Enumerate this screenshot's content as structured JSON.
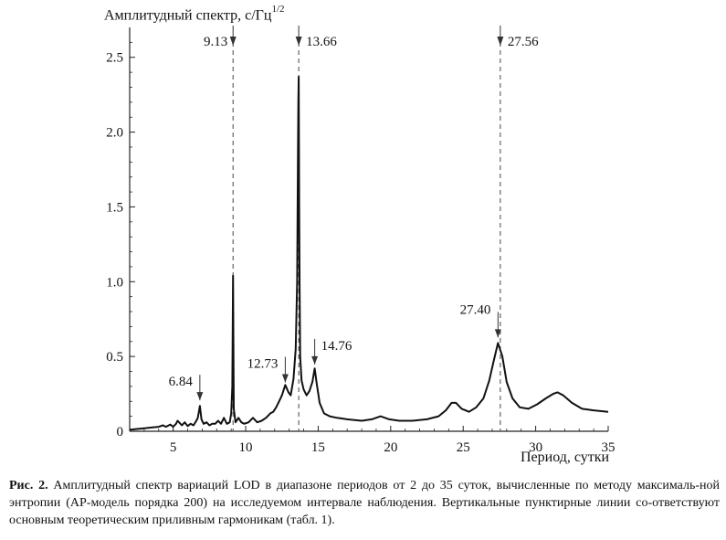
{
  "chart_data": {
    "type": "line",
    "ylabel_main": "Амплитудный спектр, с/Гц",
    "ylabel_sup": "1/2",
    "xlabel": "Период, сутки",
    "xlim": [
      2,
      35
    ],
    "ylim": [
      0,
      2.7
    ],
    "x_ticks": [
      5,
      10,
      15,
      20,
      25,
      30,
      35
    ],
    "y_ticks": [
      0,
      0.5,
      1.0,
      1.5,
      2.0,
      2.5
    ],
    "y_tick_labels": [
      "0",
      "0.5",
      "1.0",
      "1.5",
      "2.0",
      "2.5"
    ],
    "dashed_lines": [
      {
        "x": 9.13,
        "label": "9.13"
      },
      {
        "x": 13.66,
        "label": "13.66"
      },
      {
        "x": 27.56,
        "label": "27.56"
      }
    ],
    "peak_annotations": [
      {
        "x": 6.84,
        "y": 0.17,
        "label": "6.84"
      },
      {
        "x": 12.73,
        "y": 0.29,
        "label": "12.73"
      },
      {
        "x": 14.76,
        "y": 0.41,
        "label": "14.76"
      },
      {
        "x": 27.4,
        "y": 0.59,
        "label": "27.40"
      }
    ],
    "series": [
      {
        "x": [
          2.0,
          2.5,
          3.0,
          3.5,
          4.0,
          4.3,
          4.5,
          4.8,
          5.0,
          5.2,
          5.3,
          5.5,
          5.6,
          5.8,
          6.0,
          6.2,
          6.4,
          6.6,
          6.7,
          6.84,
          6.95,
          7.1,
          7.3,
          7.5,
          7.7,
          7.9,
          8.1,
          8.3,
          8.5,
          8.7,
          8.9,
          9.0,
          9.08,
          9.13,
          9.18,
          9.3,
          9.5,
          9.7,
          9.9,
          10.2,
          10.5,
          10.8,
          11.1,
          11.4,
          11.7,
          11.9,
          12.1,
          12.3,
          12.5,
          12.73,
          12.95,
          13.1,
          13.3,
          13.45,
          13.55,
          13.6,
          13.63,
          13.66,
          13.69,
          13.72,
          13.76,
          13.85,
          14.0,
          14.2,
          14.4,
          14.6,
          14.76,
          14.9,
          15.1,
          15.4,
          15.8,
          16.3,
          17.0,
          18.0,
          18.7,
          19.3,
          19.9,
          20.6,
          21.5,
          22.5,
          23.3,
          23.8,
          24.2,
          24.5,
          24.9,
          25.4,
          25.9,
          26.4,
          26.8,
          27.1,
          27.4,
          27.7,
          28.0,
          28.4,
          28.9,
          29.5,
          30.1,
          30.7,
          31.2,
          31.5,
          31.9,
          32.5,
          33.2,
          34.0,
          35.0
        ],
        "y": [
          0.01,
          0.015,
          0.02,
          0.025,
          0.03,
          0.04,
          0.03,
          0.045,
          0.03,
          0.05,
          0.07,
          0.05,
          0.04,
          0.06,
          0.035,
          0.05,
          0.04,
          0.07,
          0.09,
          0.17,
          0.08,
          0.05,
          0.06,
          0.04,
          0.05,
          0.05,
          0.07,
          0.05,
          0.09,
          0.05,
          0.06,
          0.12,
          0.3,
          1.04,
          0.15,
          0.06,
          0.09,
          0.06,
          0.05,
          0.06,
          0.09,
          0.06,
          0.07,
          0.09,
          0.12,
          0.13,
          0.16,
          0.2,
          0.24,
          0.31,
          0.26,
          0.24,
          0.35,
          0.55,
          1.0,
          1.78,
          2.2,
          2.37,
          1.5,
          0.95,
          0.5,
          0.34,
          0.28,
          0.24,
          0.27,
          0.33,
          0.42,
          0.32,
          0.19,
          0.12,
          0.1,
          0.09,
          0.08,
          0.07,
          0.08,
          0.1,
          0.08,
          0.07,
          0.07,
          0.08,
          0.1,
          0.14,
          0.19,
          0.19,
          0.15,
          0.13,
          0.16,
          0.22,
          0.34,
          0.47,
          0.59,
          0.5,
          0.33,
          0.22,
          0.16,
          0.15,
          0.18,
          0.22,
          0.25,
          0.26,
          0.24,
          0.19,
          0.15,
          0.14,
          0.13
        ]
      }
    ],
    "grid": false,
    "legend": "none"
  },
  "caption": {
    "bold": "Рис. 2.",
    "text": " Амплитудный спектр вариаций LOD в диапазоне периодов от 2 до 35 суток, вычисленные по методу максималь-ной энтропии (АР-модель порядка 200) на исследуемом интервале наблюдения. Вертикальные пунктирные линии со-ответствуют основным теоретическим приливным гармоникам (табл. 1)."
  },
  "colors": {
    "line": "#111111",
    "axis": "#222222",
    "dashed": "#555555"
  }
}
